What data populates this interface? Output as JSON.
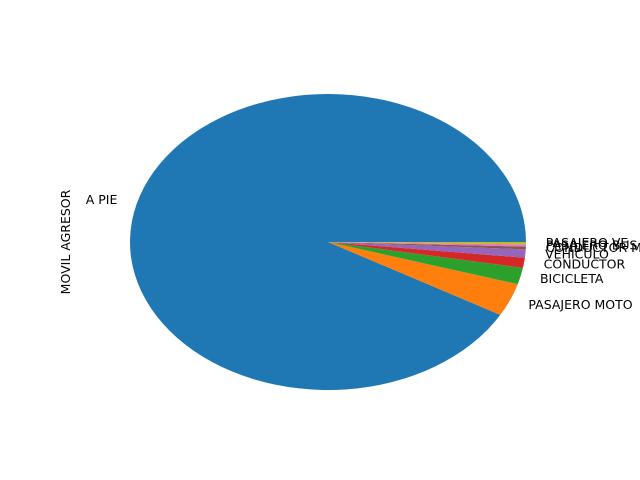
{
  "chart_data": {
    "type": "pie",
    "ylabel": "MOVIL AGRESOR",
    "start_angle_deg": 0,
    "direction": "counterclockwise",
    "slices": [
      {
        "label": "A PIE",
        "value": 91.8,
        "color": "#1f77b4"
      },
      {
        "label": "PASAJERO MOTO",
        "value": 3.6,
        "color": "#ff7f0e"
      },
      {
        "label": "BICICLETA",
        "value": 1.8,
        "color": "#2ca02c"
      },
      {
        "label": "CONDUCTOR",
        "value": 1.1,
        "color": "#d62728"
      },
      {
        "label": "VEHICULO",
        "value": 0.9,
        "color": "#9467bd"
      },
      {
        "label": "CONDUCTOR M",
        "value": 0.3,
        "color": "#8c564b"
      },
      {
        "label": "PASAJERO BUS",
        "value": 0.25,
        "color": "#e377c2"
      },
      {
        "label": "PASAJERO VE",
        "value": 0.25,
        "color": "#bcbd22"
      }
    ]
  }
}
